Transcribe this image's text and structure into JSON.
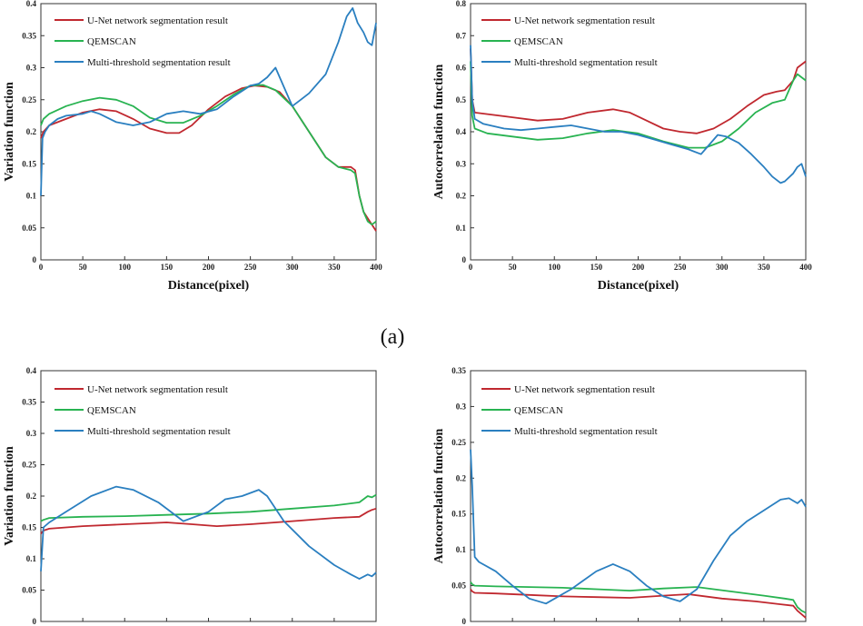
{
  "caption": "(a)",
  "colors": {
    "unet": "#c0282f",
    "qemscan": "#28b351",
    "multi": "#2a7fc0"
  },
  "chart_data": [
    {
      "type": "line",
      "xlabel": "Distance(pixel)",
      "ylabel": "Variation  function",
      "xlim": [
        0,
        400
      ],
      "ylim": [
        0,
        0.4
      ],
      "xticks": [
        "0",
        "50",
        "100",
        "150",
        "200",
        "250",
        "300",
        "350",
        "400"
      ],
      "yticks": [
        "0",
        "0.05",
        "0.1",
        "0.15",
        "0.2",
        "0.25",
        "0.3",
        "0.35",
        "0.4"
      ],
      "grid": false,
      "legend": "top-left",
      "series": [
        {
          "name": "U-Net network segmentation result",
          "color": "#c0282f",
          "x": [
            0,
            3,
            10,
            30,
            50,
            70,
            90,
            110,
            130,
            150,
            165,
            180,
            200,
            220,
            240,
            255,
            270,
            285,
            300,
            320,
            340,
            355,
            370,
            375,
            380,
            385,
            390,
            395,
            400
          ],
          "y": [
            0.19,
            0.2,
            0.21,
            0.22,
            0.23,
            0.235,
            0.232,
            0.22,
            0.205,
            0.198,
            0.198,
            0.21,
            0.235,
            0.255,
            0.268,
            0.272,
            0.27,
            0.262,
            0.24,
            0.2,
            0.16,
            0.145,
            0.145,
            0.14,
            0.1,
            0.075,
            0.065,
            0.055,
            0.045
          ]
        },
        {
          "name": "QEMSCAN",
          "color": "#28b351",
          "x": [
            0,
            3,
            10,
            30,
            50,
            70,
            90,
            110,
            130,
            150,
            170,
            190,
            210,
            230,
            250,
            265,
            280,
            300,
            320,
            340,
            355,
            370,
            375,
            380,
            385,
            390,
            395,
            400
          ],
          "y": [
            0.21,
            0.22,
            0.228,
            0.24,
            0.248,
            0.253,
            0.25,
            0.24,
            0.222,
            0.214,
            0.214,
            0.225,
            0.24,
            0.258,
            0.272,
            0.273,
            0.265,
            0.24,
            0.2,
            0.16,
            0.145,
            0.14,
            0.135,
            0.1,
            0.075,
            0.06,
            0.055,
            0.06
          ]
        },
        {
          "name": "Multi-threshold segmentation result",
          "color": "#2a7fc0",
          "x": [
            0,
            2,
            5,
            10,
            20,
            30,
            50,
            60,
            70,
            90,
            110,
            130,
            150,
            170,
            190,
            210,
            230,
            250,
            260,
            270,
            280,
            290,
            300,
            310,
            320,
            340,
            355,
            365,
            372,
            378,
            385,
            390,
            395,
            400
          ],
          "y": [
            0.1,
            0.19,
            0.2,
            0.21,
            0.22,
            0.225,
            0.228,
            0.232,
            0.228,
            0.215,
            0.21,
            0.215,
            0.228,
            0.232,
            0.228,
            0.235,
            0.255,
            0.272,
            0.275,
            0.285,
            0.3,
            0.27,
            0.24,
            0.25,
            0.26,
            0.29,
            0.34,
            0.38,
            0.393,
            0.37,
            0.355,
            0.34,
            0.335,
            0.37
          ]
        }
      ]
    },
    {
      "type": "line",
      "xlabel": "Distance(pixel)",
      "ylabel": "Autocorrelation  function",
      "xlim": [
        0,
        400
      ],
      "ylim": [
        0,
        0.8
      ],
      "xticks": [
        "0",
        "50",
        "100",
        "150",
        "200",
        "250",
        "300",
        "350",
        "400"
      ],
      "yticks": [
        "0",
        "0.1",
        "0.2",
        "0.3",
        "0.4",
        "0.5",
        "0.6",
        "0.7",
        "0.8"
      ],
      "grid": false,
      "legend": "top-left",
      "series": [
        {
          "name": "U-Net network segmentation result",
          "color": "#c0282f",
          "x": [
            0,
            2,
            5,
            20,
            50,
            80,
            110,
            140,
            170,
            190,
            210,
            230,
            250,
            270,
            290,
            310,
            330,
            350,
            365,
            375,
            385,
            390,
            395,
            400
          ],
          "y": [
            0.66,
            0.5,
            0.46,
            0.455,
            0.445,
            0.435,
            0.44,
            0.46,
            0.47,
            0.46,
            0.435,
            0.41,
            0.4,
            0.395,
            0.41,
            0.44,
            0.48,
            0.515,
            0.525,
            0.53,
            0.56,
            0.6,
            0.61,
            0.62
          ]
        },
        {
          "name": "QEMSCAN",
          "color": "#28b351",
          "x": [
            0,
            2,
            5,
            20,
            50,
            80,
            110,
            140,
            170,
            200,
            230,
            260,
            280,
            300,
            320,
            340,
            360,
            375,
            385,
            390,
            395,
            400
          ],
          "y": [
            0.62,
            0.45,
            0.41,
            0.395,
            0.385,
            0.375,
            0.38,
            0.395,
            0.405,
            0.395,
            0.37,
            0.35,
            0.35,
            0.37,
            0.41,
            0.46,
            0.49,
            0.5,
            0.56,
            0.58,
            0.57,
            0.56
          ]
        },
        {
          "name": "Multi-threshold segmentation result",
          "color": "#2a7fc0",
          "x": [
            0,
            2,
            5,
            15,
            40,
            60,
            80,
            100,
            120,
            140,
            160,
            180,
            200,
            220,
            240,
            260,
            275,
            285,
            295,
            305,
            320,
            335,
            350,
            360,
            370,
            375,
            385,
            390,
            395,
            400
          ],
          "y": [
            0.67,
            0.5,
            0.44,
            0.425,
            0.41,
            0.405,
            0.41,
            0.415,
            0.42,
            0.41,
            0.4,
            0.4,
            0.39,
            0.375,
            0.36,
            0.345,
            0.33,
            0.36,
            0.39,
            0.385,
            0.365,
            0.33,
            0.29,
            0.26,
            0.24,
            0.245,
            0.27,
            0.29,
            0.3,
            0.26
          ]
        }
      ]
    },
    {
      "type": "line",
      "xlabel": "",
      "ylabel": "Variation  function",
      "xlim": [
        0,
        400
      ],
      "ylim": [
        0,
        0.4
      ],
      "xticks": [],
      "yticks": [
        "0",
        "0.05",
        "0.1",
        "0.15",
        "0.2",
        "0.25",
        "0.3",
        "0.35",
        "0.4"
      ],
      "grid": false,
      "legend": "top-left",
      "series": [
        {
          "name": "U-Net network segmentation result",
          "color": "#c0282f",
          "x": [
            0,
            3,
            10,
            50,
            100,
            150,
            180,
            210,
            250,
            300,
            350,
            380,
            390,
            395,
            400
          ],
          "y": [
            0.14,
            0.145,
            0.148,
            0.152,
            0.155,
            0.158,
            0.155,
            0.152,
            0.155,
            0.16,
            0.165,
            0.167,
            0.175,
            0.178,
            0.18
          ]
        },
        {
          "name": "QEMSCAN",
          "color": "#28b351",
          "x": [
            0,
            3,
            10,
            50,
            100,
            150,
            200,
            250,
            300,
            350,
            380,
            390,
            395,
            400
          ],
          "y": [
            0.16,
            0.162,
            0.165,
            0.167,
            0.168,
            0.17,
            0.172,
            0.175,
            0.18,
            0.185,
            0.19,
            0.2,
            0.198,
            0.202
          ]
        },
        {
          "name": "Multi-threshold segmentation result",
          "color": "#2a7fc0",
          "x": [
            0,
            3,
            10,
            30,
            60,
            90,
            110,
            140,
            170,
            200,
            220,
            240,
            260,
            270,
            290,
            320,
            350,
            370,
            380,
            390,
            395,
            400
          ],
          "y": [
            0.08,
            0.15,
            0.158,
            0.175,
            0.2,
            0.215,
            0.21,
            0.19,
            0.16,
            0.175,
            0.195,
            0.2,
            0.21,
            0.2,
            0.16,
            0.12,
            0.09,
            0.075,
            0.068,
            0.075,
            0.072,
            0.078
          ]
        }
      ]
    },
    {
      "type": "line",
      "xlabel": "",
      "ylabel": "Autocorrelation  function",
      "xlim": [
        0,
        400
      ],
      "ylim": [
        0,
        0.35
      ],
      "xticks": [],
      "yticks": [
        "0",
        "0.05",
        "0.1",
        "0.15",
        "0.2",
        "0.25",
        "0.3",
        "0.35"
      ],
      "grid": false,
      "legend": "top-left",
      "series": [
        {
          "name": "U-Net network segmentation result",
          "color": "#c0282f",
          "x": [
            0,
            2,
            5,
            30,
            70,
            110,
            150,
            190,
            230,
            260,
            300,
            340,
            370,
            385,
            390,
            395,
            400
          ],
          "y": [
            0.045,
            0.042,
            0.04,
            0.039,
            0.037,
            0.035,
            0.034,
            0.033,
            0.036,
            0.038,
            0.032,
            0.028,
            0.024,
            0.022,
            0.015,
            0.01,
            0.005
          ]
        },
        {
          "name": "QEMSCAN",
          "color": "#28b351",
          "x": [
            0,
            2,
            5,
            30,
            70,
            110,
            150,
            190,
            230,
            270,
            310,
            350,
            375,
            385,
            390,
            395,
            400
          ],
          "y": [
            0.055,
            0.052,
            0.05,
            0.049,
            0.048,
            0.047,
            0.045,
            0.043,
            0.046,
            0.048,
            0.042,
            0.036,
            0.032,
            0.03,
            0.02,
            0.015,
            0.012
          ]
        },
        {
          "name": "Multi-threshold segmentation result",
          "color": "#2a7fc0",
          "x": [
            0,
            2,
            5,
            10,
            30,
            50,
            70,
            90,
            120,
            150,
            170,
            190,
            210,
            230,
            250,
            270,
            290,
            310,
            330,
            350,
            370,
            380,
            390,
            395,
            400
          ],
          "y": [
            0.24,
            0.19,
            0.09,
            0.083,
            0.07,
            0.05,
            0.032,
            0.025,
            0.045,
            0.07,
            0.08,
            0.07,
            0.05,
            0.035,
            0.028,
            0.045,
            0.085,
            0.12,
            0.14,
            0.155,
            0.17,
            0.172,
            0.165,
            0.17,
            0.16
          ]
        }
      ]
    }
  ]
}
